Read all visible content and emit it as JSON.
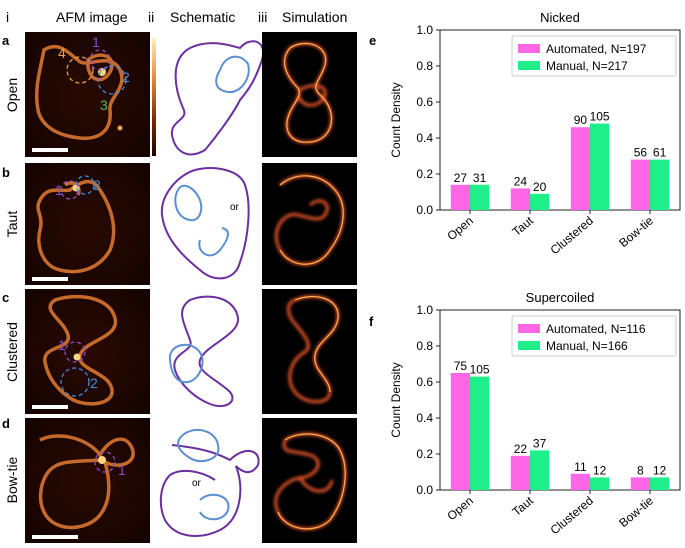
{
  "column_headers": [
    "i",
    "AFM image",
    "ii",
    "Schematic",
    "iii",
    "Simulation"
  ],
  "rows": [
    {
      "letter": "a",
      "label": "Open",
      "annotations": [
        {
          "text": "4",
          "color": "#e8a23a"
        },
        {
          "text": "1",
          "color": "#8a4fc9"
        },
        {
          "text": "2",
          "color": "#3d8fe0"
        },
        {
          "text": "3",
          "color": "#4fbf4f"
        }
      ]
    },
    {
      "letter": "b",
      "label": "Taut",
      "annotations": [
        {
          "text": "1",
          "color": "#8a4fc9"
        },
        {
          "text": "2",
          "color": "#3d8fe0"
        }
      ],
      "schematic_note": "or"
    },
    {
      "letter": "c",
      "label": "Clustered",
      "annotations": [
        {
          "text": "1",
          "color": "#8a4fc9"
        },
        {
          "text": "2",
          "color": "#3d8fe0"
        }
      ]
    },
    {
      "letter": "d",
      "label": "Bow-tie",
      "annotations": [
        {
          "text": "1",
          "color": "#8a4fc9"
        }
      ],
      "schematic_note": "or"
    }
  ],
  "colors": {
    "automated": "#ff66e6",
    "manual": "#1fef8a",
    "loop_purple": "#6b2fa0",
    "loop_blue": "#5b8fd0"
  },
  "chart_data": [
    {
      "panel": "e",
      "type": "bar",
      "title": "Nicked",
      "ylabel": "Count Density",
      "xlabel": "",
      "ylim": [
        0,
        1.0
      ],
      "yticks": [
        "0.0",
        "0.2",
        "0.4",
        "0.6",
        "0.8",
        "1.0"
      ],
      "categories": [
        "Open",
        "Taut",
        "Clustered",
        "Bow-tie"
      ],
      "legend_position": "top-right",
      "series": [
        {
          "name": "Automated, N=197",
          "values": [
            0.14,
            0.12,
            0.46,
            0.28
          ],
          "labels": [
            "27",
            "24",
            "90",
            "56"
          ]
        },
        {
          "name": "Manual, N=217",
          "values": [
            0.14,
            0.09,
            0.48,
            0.28
          ],
          "labels": [
            "31",
            "20",
            "105",
            "61"
          ]
        }
      ]
    },
    {
      "panel": "f",
      "type": "bar",
      "title": "Supercoiled",
      "ylabel": "Count Density",
      "xlabel": "",
      "ylim": [
        0,
        1.0
      ],
      "yticks": [
        "0.0",
        "0.2",
        "0.4",
        "0.6",
        "0.8",
        "1.0"
      ],
      "categories": [
        "Open",
        "Taut",
        "Clustered",
        "Bow-tie"
      ],
      "legend_position": "top-right",
      "series": [
        {
          "name": "Automated, N=116",
          "values": [
            0.65,
            0.19,
            0.09,
            0.07
          ],
          "labels": [
            "75",
            "22",
            "11",
            "8"
          ]
        },
        {
          "name": "Manual, N=166",
          "values": [
            0.63,
            0.22,
            0.07,
            0.07
          ],
          "labels": [
            "105",
            "37",
            "12",
            "12"
          ]
        }
      ]
    }
  ]
}
